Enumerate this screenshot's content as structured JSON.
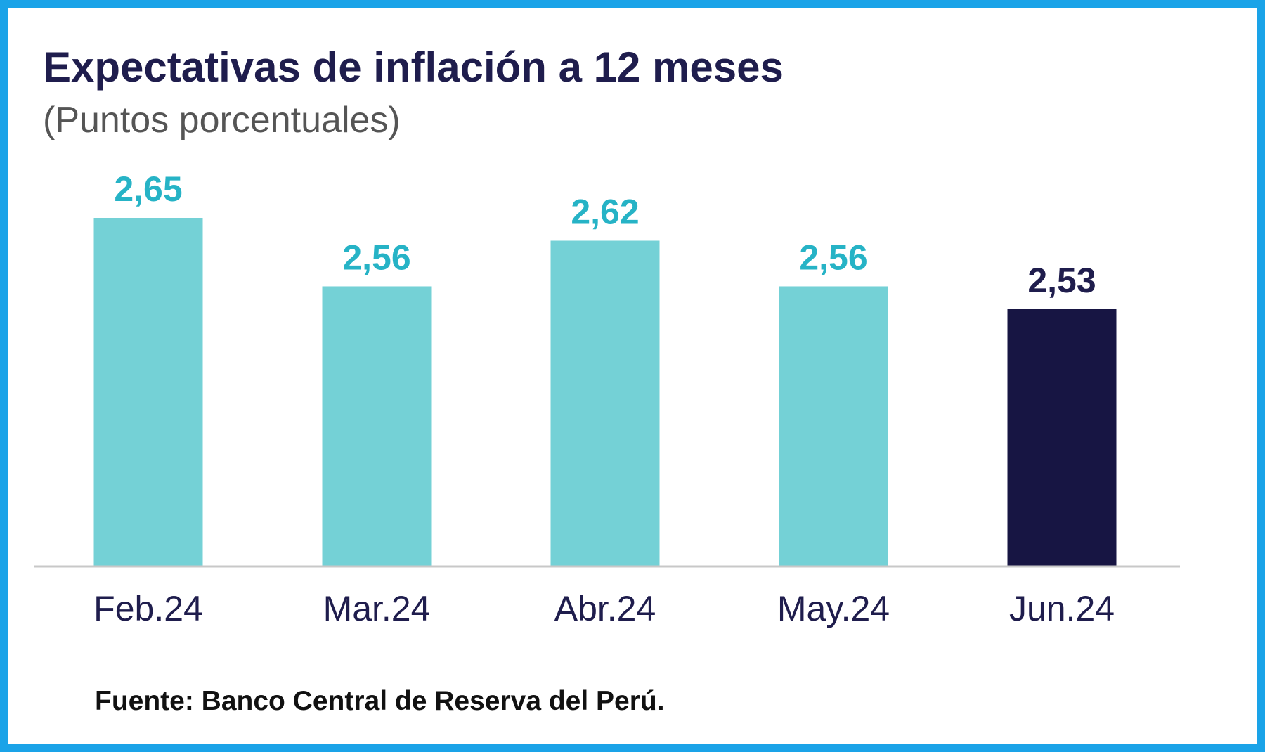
{
  "colors": {
    "frame_border": "#1aa3e8",
    "bar": "#74d1d6",
    "bar_highlight": "#171543",
    "value_label": "#26b3c6",
    "value_label_highlight": "#1f1d4d",
    "baseline": "#c8c8c8"
  },
  "chart_data": {
    "type": "bar",
    "title": "Expectativas de inflación a 12 meses",
    "subtitle": "(Puntos porcentuales)",
    "source": "Fuente: Banco Central de Reserva del Perú.",
    "categories": [
      "Feb.24",
      "Mar.24",
      "Abr.24",
      "May.24",
      "Jun.24"
    ],
    "values": [
      2.65,
      2.56,
      2.62,
      2.56,
      2.53
    ],
    "value_labels": [
      "2,65",
      "2,56",
      "2,62",
      "2,56",
      "2,53"
    ],
    "highlighted_index": 4,
    "y_axis_visible": false,
    "grid": false,
    "legend": "none"
  }
}
